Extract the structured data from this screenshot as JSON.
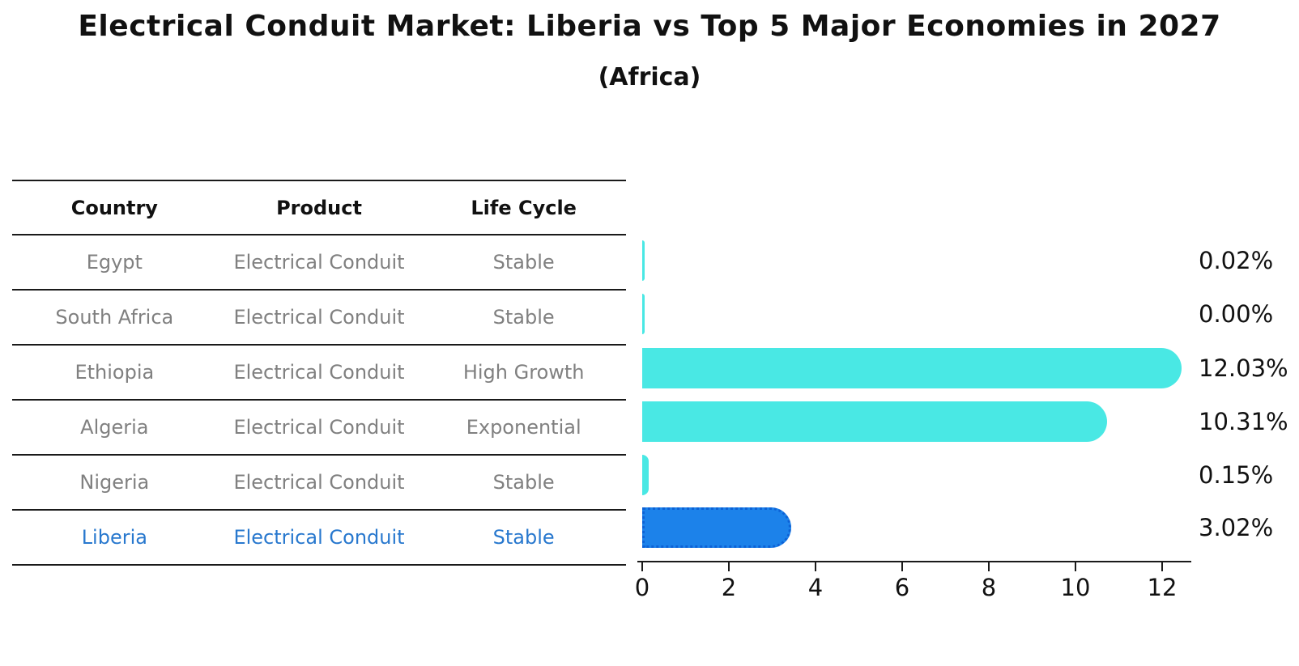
{
  "title": "Electrical Conduit Market: Liberia vs Top 5 Major Economies in 2027",
  "subtitle": "(Africa)",
  "table": {
    "headers": [
      "Country",
      "Product",
      "Life Cycle"
    ],
    "rows": [
      {
        "cells": [
          "Egypt",
          "Electrical Conduit",
          "Stable"
        ],
        "highlight": false
      },
      {
        "cells": [
          "South Africa",
          "Electrical Conduit",
          "Stable"
        ],
        "highlight": false
      },
      {
        "cells": [
          "Ethiopia",
          "Electrical Conduit",
          "High Growth"
        ],
        "highlight": false
      },
      {
        "cells": [
          "Algeria",
          "Electrical Conduit",
          "Exponential"
        ],
        "highlight": false
      },
      {
        "cells": [
          "Nigeria",
          "Electrical Conduit",
          "Stable"
        ],
        "highlight": false
      },
      {
        "cells": [
          "Liberia",
          "Electrical Conduit",
          "Stable"
        ],
        "highlight": true
      }
    ]
  },
  "chart_data": {
    "type": "bar",
    "orientation": "horizontal",
    "title": "Electrical Conduit Market: Liberia vs Top 5 Major Economies in 2027",
    "subtitle": "(Africa)",
    "categories": [
      "Egypt",
      "South Africa",
      "Ethiopia",
      "Algeria",
      "Nigeria",
      "Liberia"
    ],
    "values": [
      0.02,
      0.0,
      12.03,
      10.31,
      0.15,
      3.02
    ],
    "value_labels": [
      "0.02%",
      "0.00%",
      "12.03%",
      "10.31%",
      "0.15%",
      "3.02%"
    ],
    "x_ticks": [
      "0",
      "2",
      "4",
      "6",
      "8",
      "10",
      "12"
    ],
    "xlim": [
      0,
      12.75
    ],
    "xlabel": "",
    "ylabel": "",
    "grid": false,
    "legend": "none",
    "highlight_index": 5,
    "bar_color": "#49e8e4",
    "highlight_bar_color": "#1c82ea",
    "highlight_border_color": "#0d62d6",
    "highlight_text_color": "#2878ce",
    "body_text_color": "#808080",
    "axis_color": "#1a1a1a"
  }
}
